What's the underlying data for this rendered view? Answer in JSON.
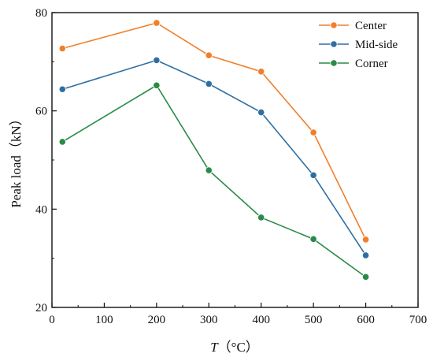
{
  "chart_data": {
    "type": "line",
    "xlabel_italic": "T",
    "xlabel_unit": "（°C）",
    "ylabel": "Peak load（kN）",
    "xlim": [
      0,
      700
    ],
    "ylim": [
      20,
      80
    ],
    "xticks": [
      0,
      100,
      200,
      300,
      400,
      500,
      600,
      700
    ],
    "yticks": [
      20,
      40,
      60,
      80
    ],
    "grid": false,
    "legend_position": "top-right",
    "x": [
      20,
      200,
      300,
      400,
      500,
      600
    ],
    "series": [
      {
        "name": "Center",
        "color": "#f07f2b",
        "values": [
          72.7,
          77.9,
          71.3,
          68.0,
          55.6,
          33.8
        ]
      },
      {
        "name": "Mid-side",
        "color": "#2e6fa3",
        "values": [
          64.4,
          70.3,
          65.5,
          59.7,
          46.9,
          30.6
        ]
      },
      {
        "name": "Corner",
        "color": "#2a8a47",
        "values": [
          53.7,
          65.2,
          47.9,
          38.3,
          33.9,
          26.2
        ]
      }
    ]
  }
}
